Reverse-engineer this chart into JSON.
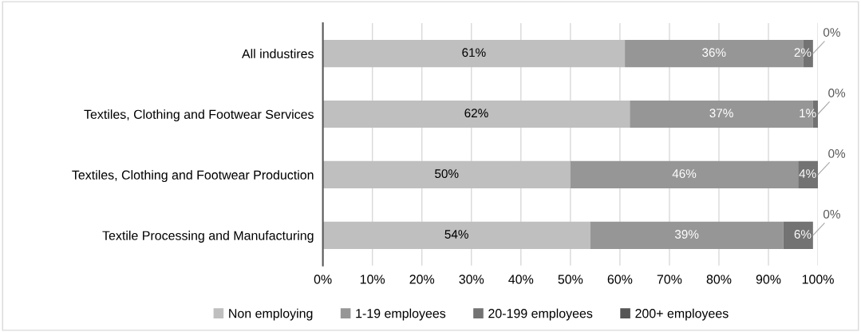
{
  "chart_data": {
    "type": "bar",
    "orientation": "horizontal",
    "stacked": true,
    "categories": [
      "All industires",
      "Textiles, Clothing and Footwear Services",
      "Textiles, Clothing and Footwear Production",
      "Textile Processing and Manufacturing"
    ],
    "series": [
      {
        "name": "Non employing",
        "color": "#bfbfbf",
        "values": [
          61,
          62,
          50,
          54
        ],
        "value_labels": [
          "61%",
          "62%",
          "50%",
          "54%"
        ]
      },
      {
        "name": "1-19 employees",
        "color": "#969696",
        "values": [
          36,
          37,
          46,
          39
        ],
        "value_labels": [
          "36%",
          "37%",
          "46%",
          "39%"
        ]
      },
      {
        "name": "20-199 employees",
        "color": "#737373",
        "values": [
          2,
          1,
          4,
          6
        ],
        "value_labels": [
          "2%",
          "1%",
          "4%",
          "6%"
        ]
      },
      {
        "name": "200+ employees",
        "color": "#555555",
        "values": [
          0,
          0,
          0,
          0
        ],
        "value_labels": [
          "0%",
          "0%",
          "0%",
          "0%"
        ]
      }
    ],
    "xlim": [
      0,
      100
    ],
    "xticks": [
      {
        "value": 0,
        "label": "0%"
      },
      {
        "value": 10,
        "label": "10%"
      },
      {
        "value": 20,
        "label": "20%"
      },
      {
        "value": 30,
        "label": "30%"
      },
      {
        "value": 40,
        "label": "40%"
      },
      {
        "value": 50,
        "label": "50%"
      },
      {
        "value": 60,
        "label": "60%"
      },
      {
        "value": 70,
        "label": "70%"
      },
      {
        "value": 80,
        "label": "80%"
      },
      {
        "value": 90,
        "label": "90%"
      },
      {
        "value": 100,
        "label": "100%"
      }
    ],
    "grid": "x",
    "legend": "bottom"
  }
}
